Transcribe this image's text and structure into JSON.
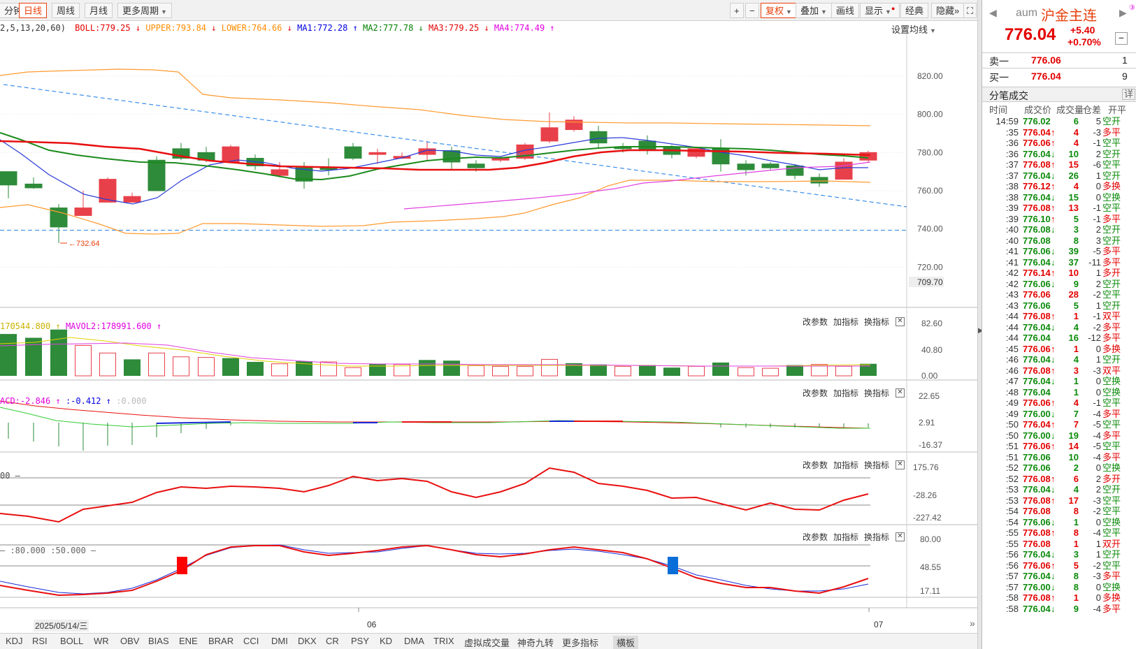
{
  "toolbar": {
    "left_buttons": [
      "分钟",
      "日线",
      "周线",
      "月线",
      "更多周期"
    ],
    "active": "日线",
    "right_buttons": [
      "+",
      "−",
      "复权",
      "叠加",
      "画线",
      "显示",
      "经典",
      "隐藏»",
      "⛶"
    ]
  },
  "indicator_line": {
    "params": "2,5,13,20,60)",
    "boll": "BOLL:779.25",
    "upper": "UPPER:793.84",
    "lower": "LOWER:764.66",
    "ma1": "MA1:772.28",
    "ma2": "MA2:777.78",
    "ma3": "MA3:779.25",
    "ma4": "MA4:774.49",
    "setting": "设置均线"
  },
  "main_axis": {
    "labels": [
      "820.00",
      "800.00",
      "780.00",
      "760.00",
      "740.00",
      "720.00"
    ],
    "current": "709.70"
  },
  "low_marker": "732.64",
  "vol_panel": {
    "mavol1": "170544.800",
    "mavol2": "MAVOL2:178991.600",
    "axis": [
      "82.60",
      "40.80",
      "0.00"
    ]
  },
  "macd_panel": {
    "macd": "ACD:-2.846",
    "dif": ":-0.412",
    "dea": ":0.000",
    "axis": [
      "22.65",
      "2.91",
      "-16.37"
    ]
  },
  "cci_panel": {
    "label": "00",
    "axis": [
      "175.76",
      "-28.26",
      "-227.42"
    ]
  },
  "kdj_panel": {
    "label": ":80.000  :50.000",
    "axis": [
      "80.00",
      "48.55",
      "17.11"
    ]
  },
  "panel_buttons": [
    "改参数",
    "加指标",
    "换指标"
  ],
  "date_axis": {
    "cursor_date": "2025/05/14/三",
    "labels": [
      "06",
      "07"
    ]
  },
  "bottom_tabs": [
    "KDJ",
    "RSI",
    "BOLL",
    "WR",
    "OBV",
    "BIAS",
    "ENE",
    "BRAR",
    "CCI",
    "DMI",
    "DKX",
    "CR",
    "PSY",
    "KD",
    "DMA",
    "TRIX",
    "虚拟成交量",
    "神奇九转",
    "更多指标",
    "横板"
  ],
  "bottom_active": "横板",
  "quote": {
    "code": "aum",
    "name": "沪金主连",
    "price": "776.04",
    "change": "+5.40",
    "change_pct": "+0.70%",
    "ask_label": "卖一",
    "ask_price": "776.06",
    "ask_vol": "1",
    "bid_label": "买一",
    "bid_price": "776.04",
    "bid_vol": "9",
    "section": "分笔成交",
    "detail": "详",
    "cols": [
      "时间",
      "成交价",
      "成交量",
      "仓差",
      "开平"
    ]
  },
  "trades": [
    [
      "14:59",
      "776.02",
      "",
      "6",
      "5",
      "空开",
      "g"
    ],
    [
      ":35",
      "776.04",
      "↑",
      "4",
      "-3",
      "多平",
      "r"
    ],
    [
      ":36",
      "776.06",
      "↑",
      "4",
      "-1",
      "空平",
      "r"
    ],
    [
      ":36",
      "776.04",
      "↓",
      "10",
      "2",
      "空开",
      "g"
    ],
    [
      ":37",
      "776.08",
      "↑",
      "15",
      "-6",
      "空平",
      "r"
    ],
    [
      ":37",
      "776.04",
      "↓",
      "26",
      "1",
      "空开",
      "g"
    ],
    [
      ":38",
      "776.12",
      "↑",
      "4",
      "0",
      "多换",
      "r"
    ],
    [
      ":38",
      "776.04",
      "↓",
      "15",
      "0",
      "空换",
      "g"
    ],
    [
      ":39",
      "776.08",
      "↑",
      "13",
      "-1",
      "空平",
      "r"
    ],
    [
      ":39",
      "776.10",
      "↑",
      "5",
      "-1",
      "多平",
      "g"
    ],
    [
      ":40",
      "776.08",
      "↓",
      "3",
      "2",
      "空开",
      "g"
    ],
    [
      ":40",
      "776.08",
      "",
      "8",
      "3",
      "空开",
      "g"
    ],
    [
      ":41",
      "776.06",
      "↓",
      "39",
      "-5",
      "多平",
      "g"
    ],
    [
      ":41",
      "776.04",
      "↓",
      "37",
      "-11",
      "多平",
      "g"
    ],
    [
      ":42",
      "776.14",
      "↑",
      "10",
      "1",
      "多开",
      "r"
    ],
    [
      ":42",
      "776.06",
      "↓",
      "9",
      "2",
      "空开",
      "g"
    ],
    [
      ":43",
      "776.06",
      "",
      "28",
      "-2",
      "空平",
      "r"
    ],
    [
      ":43",
      "776.06",
      "",
      "5",
      "1",
      "空开",
      "g"
    ],
    [
      ":44",
      "776.08",
      "↑",
      "1",
      "-1",
      "双平",
      "r"
    ],
    [
      ":44",
      "776.04",
      "↓",
      "4",
      "-2",
      "多平",
      "g"
    ],
    [
      ":44",
      "776.04",
      "",
      "16",
      "-12",
      "多平",
      "g"
    ],
    [
      ":45",
      "776.06",
      "↑",
      "1",
      "0",
      "多换",
      "r"
    ],
    [
      ":46",
      "776.04",
      "↓",
      "4",
      "1",
      "空开",
      "g"
    ],
    [
      ":46",
      "776.08",
      "↑",
      "3",
      "-3",
      "双平",
      "r"
    ],
    [
      ":47",
      "776.04",
      "↓",
      "1",
      "0",
      "空换",
      "g"
    ],
    [
      ":48",
      "776.04",
      "",
      "1",
      "0",
      "空换",
      "g"
    ],
    [
      ":49",
      "776.06",
      "↑",
      "4",
      "-1",
      "空平",
      "r"
    ],
    [
      ":49",
      "776.00",
      "↓",
      "7",
      "-4",
      "多平",
      "g"
    ],
    [
      ":50",
      "776.04",
      "↑",
      "7",
      "-5",
      "空平",
      "r"
    ],
    [
      ":50",
      "776.00",
      "↓",
      "19",
      "-4",
      "多平",
      "g"
    ],
    [
      ":51",
      "776.06",
      "↑",
      "14",
      "-5",
      "空平",
      "r"
    ],
    [
      ":51",
      "776.06",
      "",
      "10",
      "-4",
      "多平",
      "g"
    ],
    [
      ":52",
      "776.06",
      "",
      "2",
      "0",
      "空换",
      "g"
    ],
    [
      ":52",
      "776.08",
      "↑",
      "6",
      "2",
      "多开",
      "r"
    ],
    [
      ":53",
      "776.04",
      "↓",
      "4",
      "2",
      "空开",
      "g"
    ],
    [
      ":53",
      "776.08",
      "↑",
      "17",
      "-3",
      "空平",
      "r"
    ],
    [
      ":54",
      "776.08",
      "",
      "8",
      "-2",
      "空平",
      "r"
    ],
    [
      ":54",
      "776.06",
      "↓",
      "1",
      "0",
      "空换",
      "g"
    ],
    [
      ":55",
      "776.08",
      "↑",
      "8",
      "-4",
      "空平",
      "r"
    ],
    [
      ":55",
      "776.08",
      "",
      "1",
      "1",
      "双开",
      "r"
    ],
    [
      ":56",
      "776.04",
      "↓",
      "3",
      "1",
      "空开",
      "g"
    ],
    [
      ":56",
      "776.06",
      "↑",
      "5",
      "-2",
      "空平",
      "r"
    ],
    [
      ":57",
      "776.04",
      "↓",
      "8",
      "-3",
      "多平",
      "g"
    ],
    [
      ":57",
      "776.00",
      "↓",
      "8",
      "0",
      "空换",
      "g"
    ],
    [
      ":58",
      "776.08",
      "↑",
      "1",
      "0",
      "多换",
      "r"
    ],
    [
      ":58",
      "776.04",
      "↓",
      "9",
      "-4",
      "多平",
      "g"
    ]
  ]
}
